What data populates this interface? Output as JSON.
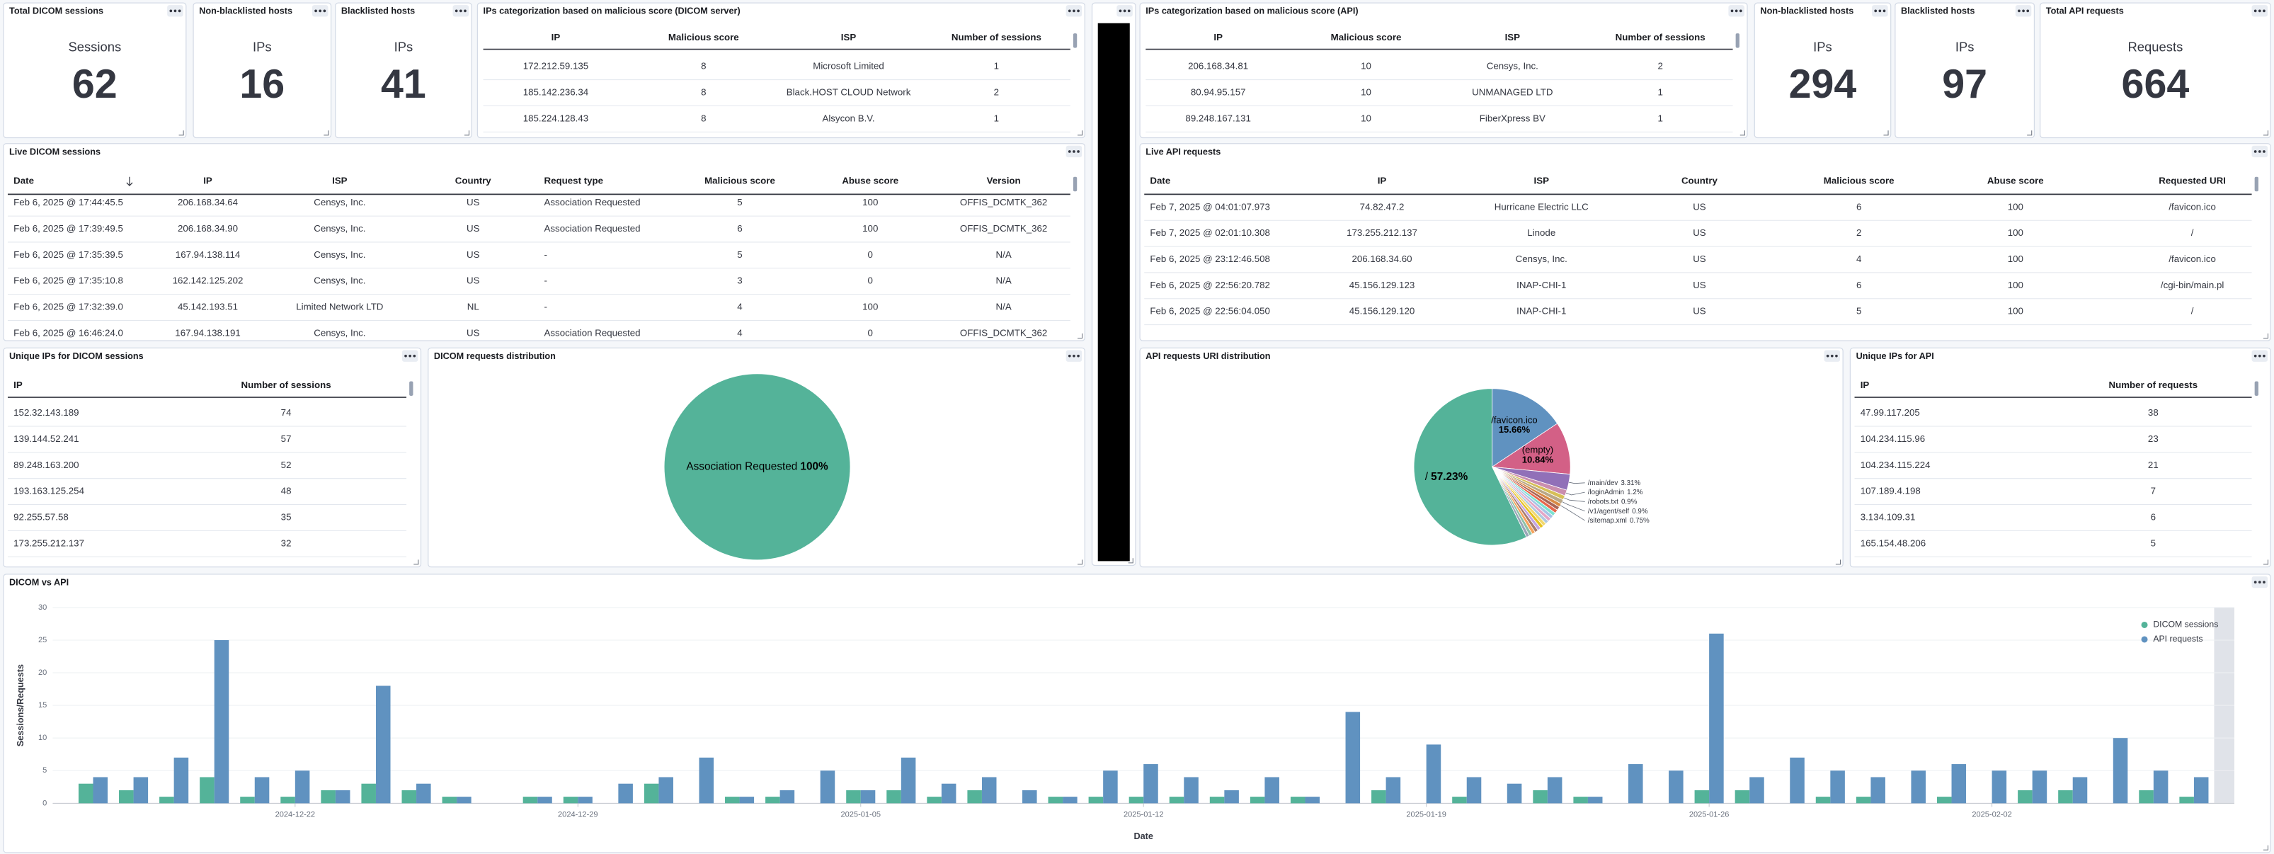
{
  "panels": {
    "total_dicom": {
      "title": "Total DICOM sessions",
      "label": "Sessions",
      "value": 62
    },
    "dicom_allowed": {
      "title": "Non-blacklisted hosts",
      "label": "IPs",
      "value": 16
    },
    "dicom_blacklisted": {
      "title": "Blacklisted hosts",
      "label": "IPs",
      "value": 41
    },
    "dicom_categorization": {
      "title": "IPs categorization based on malicious score (DICOM server)",
      "columns": [
        "IP",
        "Malicious score",
        "ISP",
        "Number of sessions"
      ],
      "rows": [
        [
          "172.212.59.135",
          8,
          "Microsoft Limited",
          1
        ],
        [
          "185.142.236.34",
          8,
          "Black.HOST CLOUD Network",
          2
        ],
        [
          "185.224.128.43",
          8,
          "Alsycon B.V.",
          1
        ]
      ]
    },
    "api_categorization": {
      "title": "IPs categorization based on malicious score (API)",
      "columns": [
        "IP",
        "Malicious score",
        "ISP",
        "Number of sessions"
      ],
      "rows": [
        [
          "206.168.34.81",
          10,
          "Censys, Inc.",
          2
        ],
        [
          "80.94.95.157",
          10,
          "UNMANAGED LTD",
          1
        ],
        [
          "89.248.167.131",
          10,
          "FiberXpress BV",
          1
        ]
      ]
    },
    "api_allowed": {
      "title": "Non-blacklisted hosts",
      "label": "IPs",
      "value": 294
    },
    "api_blacklisted": {
      "title": "Blacklisted hosts",
      "label": "IPs",
      "value": 97
    },
    "total_api": {
      "title": "Total API requests",
      "label": "Requests",
      "value": 664
    },
    "live_dicom": {
      "title": "Live DICOM sessions",
      "columns": [
        "Date",
        "IP",
        "ISP",
        "Country",
        "Request type",
        "Malicious score",
        "Abuse score",
        "Version"
      ],
      "rows": [
        [
          "Feb 6, 2025 @ 17:44:45.5",
          "206.168.34.64",
          "Censys, Inc.",
          "US",
          "Association Requested",
          5,
          100,
          "OFFIS_DCMTK_362"
        ],
        [
          "Feb 6, 2025 @ 17:39:49.5",
          "206.168.34.90",
          "Censys, Inc.",
          "US",
          "Association Requested",
          6,
          100,
          "OFFIS_DCMTK_362"
        ],
        [
          "Feb 6, 2025 @ 17:35:39.5",
          "167.94.138.114",
          "Censys, Inc.",
          "US",
          "-",
          5,
          0,
          "N/A"
        ],
        [
          "Feb 6, 2025 @ 17:35:10.8",
          "162.142.125.202",
          "Censys, Inc.",
          "US",
          "-",
          3,
          0,
          "N/A"
        ],
        [
          "Feb 6, 2025 @ 17:32:39.0",
          "45.142.193.51",
          "Limited Network LTD",
          "NL",
          "-",
          4,
          100,
          "N/A"
        ],
        [
          "Feb 6, 2025 @ 16:46:24.0",
          "167.94.138.191",
          "Censys, Inc.",
          "US",
          "Association Requested",
          4,
          0,
          "OFFIS_DCMTK_362"
        ]
      ]
    },
    "live_api": {
      "title": "Live API requests",
      "columns": [
        "Date",
        "IP",
        "ISP",
        "Country",
        "Malicious score",
        "Abuse score",
        "Requested URI"
      ],
      "rows": [
        [
          "Feb 7, 2025 @ 04:01:07.973",
          "74.82.47.2",
          "Hurricane Electric LLC",
          "US",
          6,
          100,
          "/favicon.ico"
        ],
        [
          "Feb 7, 2025 @ 02:01:10.308",
          "173.255.212.137",
          "Linode",
          "US",
          2,
          100,
          "/"
        ],
        [
          "Feb 6, 2025 @ 23:12:46.508",
          "206.168.34.60",
          "Censys, Inc.",
          "US",
          4,
          100,
          "/favicon.ico"
        ],
        [
          "Feb 6, 2025 @ 22:56:20.782",
          "45.156.129.123",
          "INAP-CHI-1",
          "US",
          6,
          100,
          "/cgi-bin/main.pl"
        ],
        [
          "Feb 6, 2025 @ 22:56:04.050",
          "45.156.129.120",
          "INAP-CHI-1",
          "US",
          5,
          100,
          "/"
        ]
      ]
    },
    "unique_dicom": {
      "title": "Unique IPs for DICOM sessions",
      "columns": [
        "IP",
        "Number of sessions"
      ],
      "rows": [
        [
          "152.32.143.189",
          74
        ],
        [
          "139.144.52.241",
          57
        ],
        [
          "89.248.163.200",
          52
        ],
        [
          "193.163.125.254",
          48
        ],
        [
          "92.255.57.58",
          35
        ],
        [
          "173.255.212.137",
          32
        ]
      ]
    },
    "unique_api": {
      "title": "Unique IPs for API",
      "columns": [
        "IP",
        "Number of requests"
      ],
      "rows": [
        [
          "47.99.117.205",
          38
        ],
        [
          "104.234.115.96",
          23
        ],
        [
          "104.234.115.224",
          21
        ],
        [
          "107.189.4.198",
          7
        ],
        [
          "3.134.109.31",
          6
        ],
        [
          "165.154.48.206",
          5
        ]
      ]
    }
  },
  "chart_data": [
    {
      "type": "pie",
      "title": "DICOM requests distribution",
      "categories": [
        "Association Requested"
      ],
      "values": [
        100
      ],
      "value_labels": [
        "100%"
      ],
      "colors": [
        "#54b399"
      ]
    },
    {
      "type": "pie",
      "title": "API requests URI distribution",
      "categories": [
        "/favicon.ico",
        "(empty)",
        "/main/dev",
        "/loginAdmin",
        "/robots.txt",
        "/v1/agent/self",
        "/sitemap.xml",
        null,
        null,
        null,
        null,
        null,
        null,
        null,
        null,
        null,
        null,
        null,
        null,
        null,
        "/"
      ],
      "values": [
        15.66,
        10.84,
        3.31,
        1.2,
        0.9,
        0.9,
        0.75,
        0.75,
        0.74,
        0.73,
        0.72,
        0.72,
        0.71,
        0.71,
        0.7,
        0.7,
        0.7,
        0.69,
        0.67,
        0.67,
        57.23
      ],
      "value_labels": [
        "15.66%",
        "10.84%",
        "3.31%",
        "1.2%",
        "0.9%",
        "0.9%",
        "0.75%",
        null,
        null,
        null,
        null,
        null,
        null,
        null,
        null,
        null,
        null,
        null,
        null,
        null,
        "57.23%"
      ],
      "colors": [
        "#6092c0",
        "#d36086",
        "#9170b8",
        "#ca8eae",
        "#d6bf57",
        "#b9a888",
        "#da8b45",
        "#aa6556",
        "#e7664c",
        "#7de2d1",
        "#a6c4e6",
        "#e4a6c7",
        "#b0c9e0",
        "#f1d86f",
        "#e6c220",
        "#c4a5e1",
        "#a87b6b",
        "#f5a35c",
        "#8dc1a8",
        "#9aa6b8",
        "#54b399"
      ]
    },
    {
      "type": "bar",
      "title": "DICOM vs API",
      "x": [
        "2024-12-17",
        "2024-12-18",
        "2024-12-19",
        "2024-12-20",
        "2024-12-21",
        "2024-12-22",
        "2024-12-23",
        "2024-12-24",
        "2024-12-25",
        "2024-12-26",
        "2024-12-27",
        "2024-12-28",
        "2024-12-29",
        "2024-12-30",
        "2024-12-31",
        "2025-01-01",
        "2025-01-02",
        "2025-01-03",
        "2025-01-04",
        "2025-01-05",
        "2025-01-06",
        "2025-01-07",
        "2025-01-08",
        "2025-01-09",
        "2025-01-10",
        "2025-01-11",
        "2025-01-12",
        "2025-01-13",
        "2025-01-14",
        "2025-01-15",
        "2025-01-16",
        "2025-01-17",
        "2025-01-18",
        "2025-01-19",
        "2025-01-20",
        "2025-01-21",
        "2025-01-22",
        "2025-01-23",
        "2025-01-24",
        "2025-01-25",
        "2025-01-26",
        "2025-01-27",
        "2025-01-28",
        "2025-01-29",
        "2025-01-30",
        "2025-01-31",
        "2025-02-01",
        "2025-02-02",
        "2025-02-03",
        "2025-02-04",
        "2025-02-05",
        "2025-02-06",
        "2025-02-07"
      ],
      "series": [
        {
          "name": "DICOM sessions",
          "color": "#54b399",
          "values": [
            3,
            2,
            1,
            4,
            1,
            1,
            2,
            3,
            2,
            1,
            0,
            1,
            1,
            0,
            3,
            0,
            1,
            1,
            0,
            2,
            2,
            1,
            2,
            0,
            1,
            1,
            1,
            1,
            1,
            1,
            1,
            0,
            2,
            0,
            1,
            0,
            2,
            1,
            0,
            0,
            2,
            2,
            0,
            1,
            1,
            0,
            1,
            0,
            2,
            2,
            0,
            2,
            1
          ]
        },
        {
          "name": "API requests",
          "color": "#6092c0",
          "values": [
            4,
            4,
            7,
            25,
            4,
            5,
            2,
            18,
            3,
            1,
            0,
            1,
            1,
            3,
            4,
            7,
            1,
            2,
            5,
            2,
            7,
            3,
            4,
            2,
            1,
            5,
            6,
            4,
            2,
            4,
            1,
            14,
            4,
            9,
            4,
            3,
            4,
            1,
            6,
            5,
            26,
            4,
            7,
            5,
            4,
            5,
            6,
            5,
            5,
            4,
            10,
            5,
            4
          ]
        }
      ],
      "xlim": [
        "2024-12-16",
        "2025-02-08"
      ],
      "xticks": [
        "2024-12-22",
        "2024-12-29",
        "2025-01-05",
        "2025-01-12",
        "2025-01-19",
        "2025-01-26",
        "2025-02-02"
      ],
      "ylim": [
        0,
        30
      ],
      "yticks": [
        0,
        5,
        10,
        15,
        20,
        25,
        30
      ],
      "xlabel": "Date",
      "ylabel": "Sessions/Requests",
      "legend": "top-right",
      "grid": true
    }
  ]
}
